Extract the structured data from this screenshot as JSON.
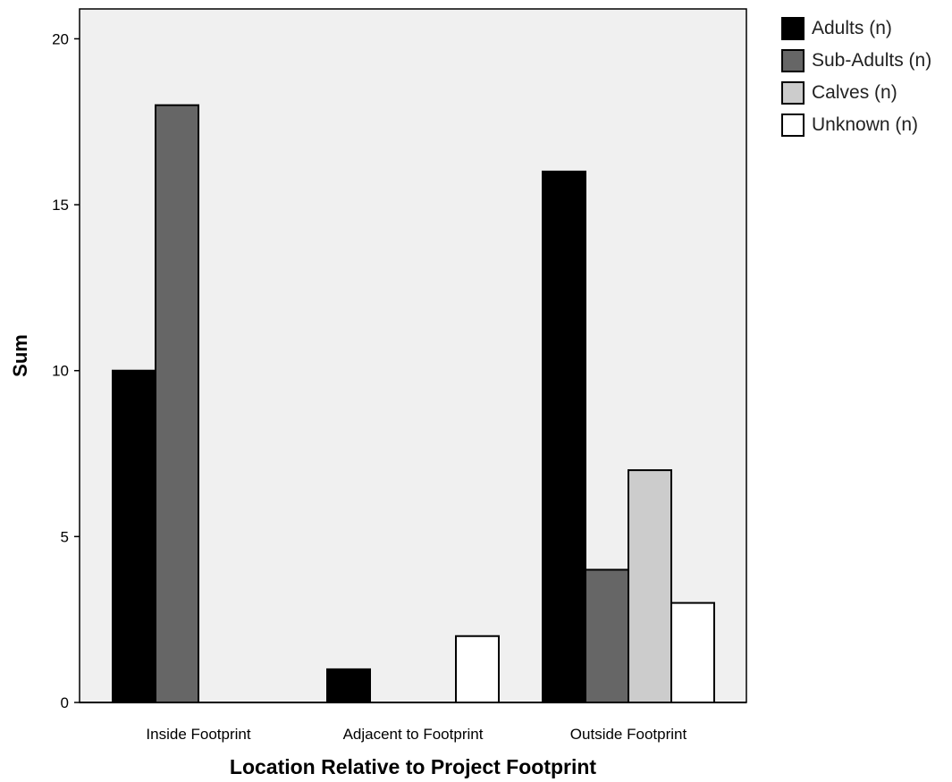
{
  "chart_data": {
    "type": "bar",
    "title": "",
    "xlabel": "Location Relative to Project Footprint",
    "ylabel": "Sum",
    "categories": [
      "Inside Footprint",
      "Adjacent to Footprint",
      "Outside Footprint"
    ],
    "series": [
      {
        "name": "Adults (n)",
        "color": "#000000",
        "values": [
          10,
          1,
          16
        ]
      },
      {
        "name": "Sub-Adults (n)",
        "color": "#666666",
        "values": [
          18,
          0,
          4
        ]
      },
      {
        "name": "Calves (n)",
        "color": "#cccccc",
        "values": [
          0,
          0,
          7
        ]
      },
      {
        "name": "Unknown (n)",
        "color": "#ffffff",
        "values": [
          0,
          2,
          3
        ]
      }
    ],
    "ylim": [
      0,
      20.9
    ],
    "yticks": [
      0,
      5,
      10,
      15,
      20
    ],
    "grid": false,
    "legend_position": "right",
    "plot_background": "#f0f0f0"
  }
}
